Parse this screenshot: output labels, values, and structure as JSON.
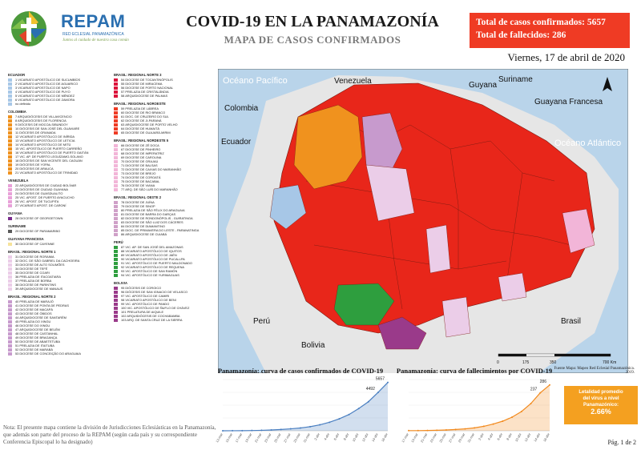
{
  "header": {
    "org_name": "REPAM",
    "org_subtitle": "RED ECLESIAL PANAMAZÓNICA",
    "org_tagline": "Juntos al cuidado de nuestra casa común",
    "title": "COVID-19 EN LA PANAMAZONÍA",
    "subtitle": "MAPA DE CASOS CONFIRMADOS",
    "total_cases": "Total de casos confirmados: 5657",
    "total_deaths": "Total de fallecidos: 286",
    "date": "Viernes, 17 de abril de 2020"
  },
  "colors": {
    "ecuador": "#a7c7e7",
    "colombia": "#f0921e",
    "venezuela": "#e8a0d8",
    "guyana": "#7b2d8e",
    "suriname": "#5a5a5a",
    "guayana": "#f6e39a",
    "norte1": "#ebcde8",
    "norte2": "#c79acd",
    "norte3": "#dc143c",
    "noroeste": "#ef3b24",
    "nordeste": "#f2b5d8",
    "oeste": "#cfa0c8",
    "peru": "#2e9e3e",
    "bolivia": "#9a3a8a"
  },
  "legend": {
    "col1": [
      {
        "head": "ECUADOR",
        "color": "ecuador",
        "items": [
          "1 VICARIATO APOSTÓLICO DE SUCUMBÍOS",
          "2 VICARIATO APOSTÓLICO DE AGUARICO",
          "3 VICARIATO APOSTÓLICO DE NAPO",
          "4 VICARIATO APOSTÓLICO DE PUYO",
          "5 VICARIATO APOSTÓLICO DE MÉNDEZ",
          "6 VICARIATO APOSTÓLICO DE ZAMORA",
          "no definido"
        ]
      },
      {
        "head": "COLOMBIA",
        "color": "colombia",
        "items": [
          "7 ARQUIDIÓCESIS DE VILLAVICENCIO",
          "8 ARQUIDIÓCESIS DE FLORENCIA",
          "9 DIÓCESIS DE MOCOA-SIBUNDOY",
          "10 DIÓCESIS DE SAN JOSÉ DEL GUAVIARE",
          "11 DIÓCESIS DE GRANADA",
          "12 VICARIATO APOSTÓLICO DE INÍRIDA",
          "13 VICARIATO APOSTÓLICO DE LETICIA",
          "14 VICARIATO APOSTÓLICO DE MITÚ",
          "15 VIC. APOSTÓLICO DE PUERTO CARREÑO",
          "16 VICARIATO APOSTÓLICO DE PUERTO GAITÁN",
          "17 VIC. AP. DE PUERTO LEGUÍZAMO-SOLANO",
          "18 DIÓCESIS DE SAN VICENTE DEL CAGUÁN",
          "19 DIÓCESIS DE YOPAL",
          "20 DIÓCESIS DE ARAUCA",
          "21 VICARIATO APOSTÓLICO DE TRINIDAD"
        ]
      },
      {
        "head": "VENEZUELA",
        "color": "venezuela",
        "items": [
          "22 ARQUIDIÓCESIS DE CIUDAD BOLÍVAR",
          "23 DIÓCESIS DE CIUDAD GUAYANA",
          "24 DIÓCESIS DE GUASDUALITO",
          "25 VIC. APOST. DE PUERTO AYACUCHO",
          "26 VIC. APOST. DE TUCUPITA",
          "27 VICARIATO APOST. DE CARONÍ"
        ]
      },
      {
        "head": "GUYANA",
        "color": "guyana",
        "items": [
          "28 DIOCESE OF GEORGETOWN"
        ]
      },
      {
        "head": "SURINAME",
        "color": "suriname",
        "items": [
          "29 DIOCESE OF PARAMARIBO"
        ]
      },
      {
        "head": "GUAYANA FRANCESA",
        "color": "guayana",
        "items": [
          "30 DIOCESE OF CAYENNE"
        ]
      },
      {
        "head": "BRASIL: REGIONAL NORTE 1",
        "color": "norte1",
        "items": [
          "31 DIOCESE DE RORAIMA",
          "32 DIOC. DE SÃO GABRIEL DA CACHOEIRA",
          "33 DIOCESE DE ALTO SOLIMÕES",
          "34 DIOCESE DE TEFÉ",
          "35 DIOCESE DE COARI",
          "36 PRELAZIA DE ITACOATIARA",
          "37 PRELAZIA DE BORBA",
          "38 DIOCESE DE PARINTINS",
          "39 ARQUIDIOCESE DE MANAUS"
        ]
      },
      {
        "head": "BRASIL: REGIONAL NORTE 2",
        "color": "norte2",
        "items": [
          "40 PRELAZIA DE MARAJÓ",
          "41 DIOCESE DE PONTA DE PEDRAS",
          "42 DIOCESE DE MACAPÁ",
          "43 DIOCESE DE ÓBIDOS",
          "44 ARQUIDIOCESE DE SANTARÉM",
          "45 PRELAZIA DO XINGU",
          "46 DIOCESE DO XINGU",
          "47 ARQUIDIOCESE DE BELÉM",
          "48 DIOCESE DE CASTANHAL",
          "49 DIOCESE DE BRAGANÇA",
          "50 DIOCESE DE ABAETETUBA",
          "51 PRELAZIA DE ITAITUBA",
          "52 DIOCESE DE MARABÁ",
          "53 DIOCESE DE CONCEIÇÃO DO ARAGUAIA"
        ]
      }
    ],
    "col2": [
      {
        "head": "BRASIL: REGIONAL NORTE 3",
        "color": "norte3",
        "items": [
          "54 DIOCESE DE TOCANTINÓPOLIS",
          "55 DIOCESE DE MIRACEMA",
          "56 DIOCESE DE PORTO NACIONAL",
          "57 PRELAZIA DE CRISTALÂNDIA",
          "58 ARQUIDIOCESE DE PALMAS"
        ]
      },
      {
        "head": "BRASIL: REGIONAL NOROESTE",
        "color": "noroeste",
        "items": [
          "59 PRELAZIA DE LÁBREA",
          "60 DIOCESE DE RIO BRANCO",
          "61 DIOC. DE CRUZEIRO DO SUL",
          "62 DIOCESE DE JI-PARANÁ",
          "63 ARQUIDIOCESE DE PORTO VELHO",
          "64 DIOCESE DE HUMAITÁ",
          "65 DIOCESE DE GUAJARÁ-MIRIM"
        ]
      },
      {
        "head": "BRASIL: REGIONAL NORDESTE 5",
        "color": "nordeste",
        "items": [
          "66 DIOCESE DE ZÉ DOCA",
          "67 DIOCESE DE PINHEIRO",
          "68 DIOCESE DE IMPERATRIZ",
          "69 DIOCESE DE CAROLINA",
          "70 DIOCESE DE GRAJAÚ",
          "71 DIOCESE DE BALSAS",
          "72 DIOCESE DE CAXIAS DO MARANHÃO",
          "73 DIOCESE DE BREJO",
          "74 DIOCESE DE COROATÁ",
          "75 DIOCESE DE BACABAL",
          "76 DIOCESE DE VIANA",
          "77 ARQ. DE SÃO LUÍS DO MARANHÃO"
        ]
      },
      {
        "head": "BRASIL: REGIONAL OESTE 2",
        "color": "oeste",
        "items": [
          "78 DIOCESE DE JUÍNA",
          "79 DIOCESE DE SINOP",
          "80 PRELAZIA DE SÃO FÉLIX DO ARAGUAIA",
          "81 DIOCESE DE BARRA DO GARÇAS",
          "82 DIOCESE DE RONDONÓPOLIS - GUIRATINGA",
          "83 DIOCESE DE SÃO LUIZ DOS CÁCERES",
          "84 DIOCESE DE DIAMANTINO",
          "85 DIOC. DE PRIMAVERA DO LESTE - PARANATINGA",
          "86 ARQUIDIOCESE DE CUIABÁ"
        ]
      },
      {
        "head": "PERÚ",
        "color": "peru",
        "items": [
          "87 VIC. AP. DE SAN JOSÉ DEL AMAZONAS",
          "88 VICARIATO APOSTÓLICO DE IQUITOS",
          "89 VICARIATO APOSTÓLICO DE JAÉN",
          "90 VICARIATO APOSTÓLICO DE PUCALLPA",
          "91 VIC. APOSTÓLICO DE PUERTO MALDONADO",
          "92 VICARIATO APOSTÓLICO DE REQUENA",
          "93 VIC. APOSTÓLICO DE SAN RAMÓN",
          "94 VIC. APOSTÓLICO DE YURIMAGUAS"
        ]
      },
      {
        "head": "BOLIVIA",
        "color": "bolivia",
        "items": [
          "95 DIÓCESIS DE COROICO",
          "96 DIÓCESIS DE SAN IGNACIO DE VELASCO",
          "97 VIC. APOSTÓLICO DE CAMIRI",
          "98 VICARIATO APOSTÓLICO DE BENI",
          "99 VIC. APOSTÓLICO DE PANDO",
          "100 VIC. APOSTÓLICO DE ÑUFLO DE CHÁVEZ",
          "101 PRELATURA DE AIQUILE",
          "102 ARQUIDIÓCESIS DE COCHABAMBA",
          "103 ARQ. DE SANTA CRUZ DE LA SIERRA"
        ]
      }
    ]
  },
  "map": {
    "ocean_pacific": "Océano Pacífico",
    "ocean_atlantic": "Océano Atlántico",
    "countries": [
      "Venezuela",
      "Guyana",
      "Suriname",
      "Guayana Francesa",
      "Colombia",
      "Ecuador",
      "Perú",
      "Bolivia",
      "Brasil"
    ],
    "scale_labels": [
      "0",
      "175",
      "350",
      "700 Km"
    ],
    "source": "Fuente Mapa: Mapeo Red Eclesial Panamazónica. 2019."
  },
  "chart_data": [
    {
      "type": "area",
      "title": "Panamazonía: curva de casos confirmados de COVID-19",
      "color": "#4a7fc1",
      "x": [
        "13-mar",
        "15-mar",
        "17-mar",
        "19-mar",
        "21-mar",
        "23-mar",
        "25-mar",
        "27-mar",
        "29-mar",
        "31-mar",
        "2-abr",
        "4-abr",
        "6-abr",
        "8-abr",
        "10-abr",
        "12-abr",
        "14-abr",
        "16-abr"
      ],
      "values": [
        2,
        6,
        15,
        30,
        55,
        95,
        150,
        230,
        330,
        480,
        700,
        1000,
        1400,
        1900,
        2600,
        3400,
        4492,
        5657
      ],
      "point_labels": [
        "",
        "",
        "",
        "",
        "",
        "",
        "",
        "",
        "",
        "",
        "",
        "",
        "",
        "",
        "",
        "",
        "4492",
        "5657"
      ],
      "ylim": [
        0,
        6000
      ]
    },
    {
      "type": "area",
      "title": "Panamazonía: curva de fallecimientos por COVID-19",
      "color": "#f28a1e",
      "x": [
        "17-mar",
        "19-mar",
        "21-mar",
        "23-mar",
        "25-mar",
        "27-mar",
        "29-mar",
        "31-mar",
        "2-abr",
        "4-abr",
        "6-abr",
        "8-abr",
        "10-abr",
        "12-abr",
        "14-abr",
        "16-abr"
      ],
      "values": [
        1,
        1,
        2,
        3,
        5,
        8,
        12,
        18,
        28,
        42,
        60,
        85,
        120,
        170,
        237,
        286
      ],
      "point_labels": [
        "",
        "",
        "",
        "",
        "",
        "",
        "",
        "",
        "",
        "",
        "",
        "",
        "",
        "",
        "237",
        "286"
      ],
      "ylim": [
        0,
        320
      ]
    }
  ],
  "lethality": {
    "line1": "Letalidad promedio",
    "line2": "del virus a nivel",
    "line3": "Panamazónico:",
    "value": "2.66%"
  },
  "note": "Nota: El presente mapa contiene la división de Jurisdicciones Eclesiásticas en la Panamazonía, que además son parte del proceso de la REPAM (según cada país y su correspondiente Conferencia Episcopal lo ha designado)",
  "page": "Pág. 1 de 2"
}
